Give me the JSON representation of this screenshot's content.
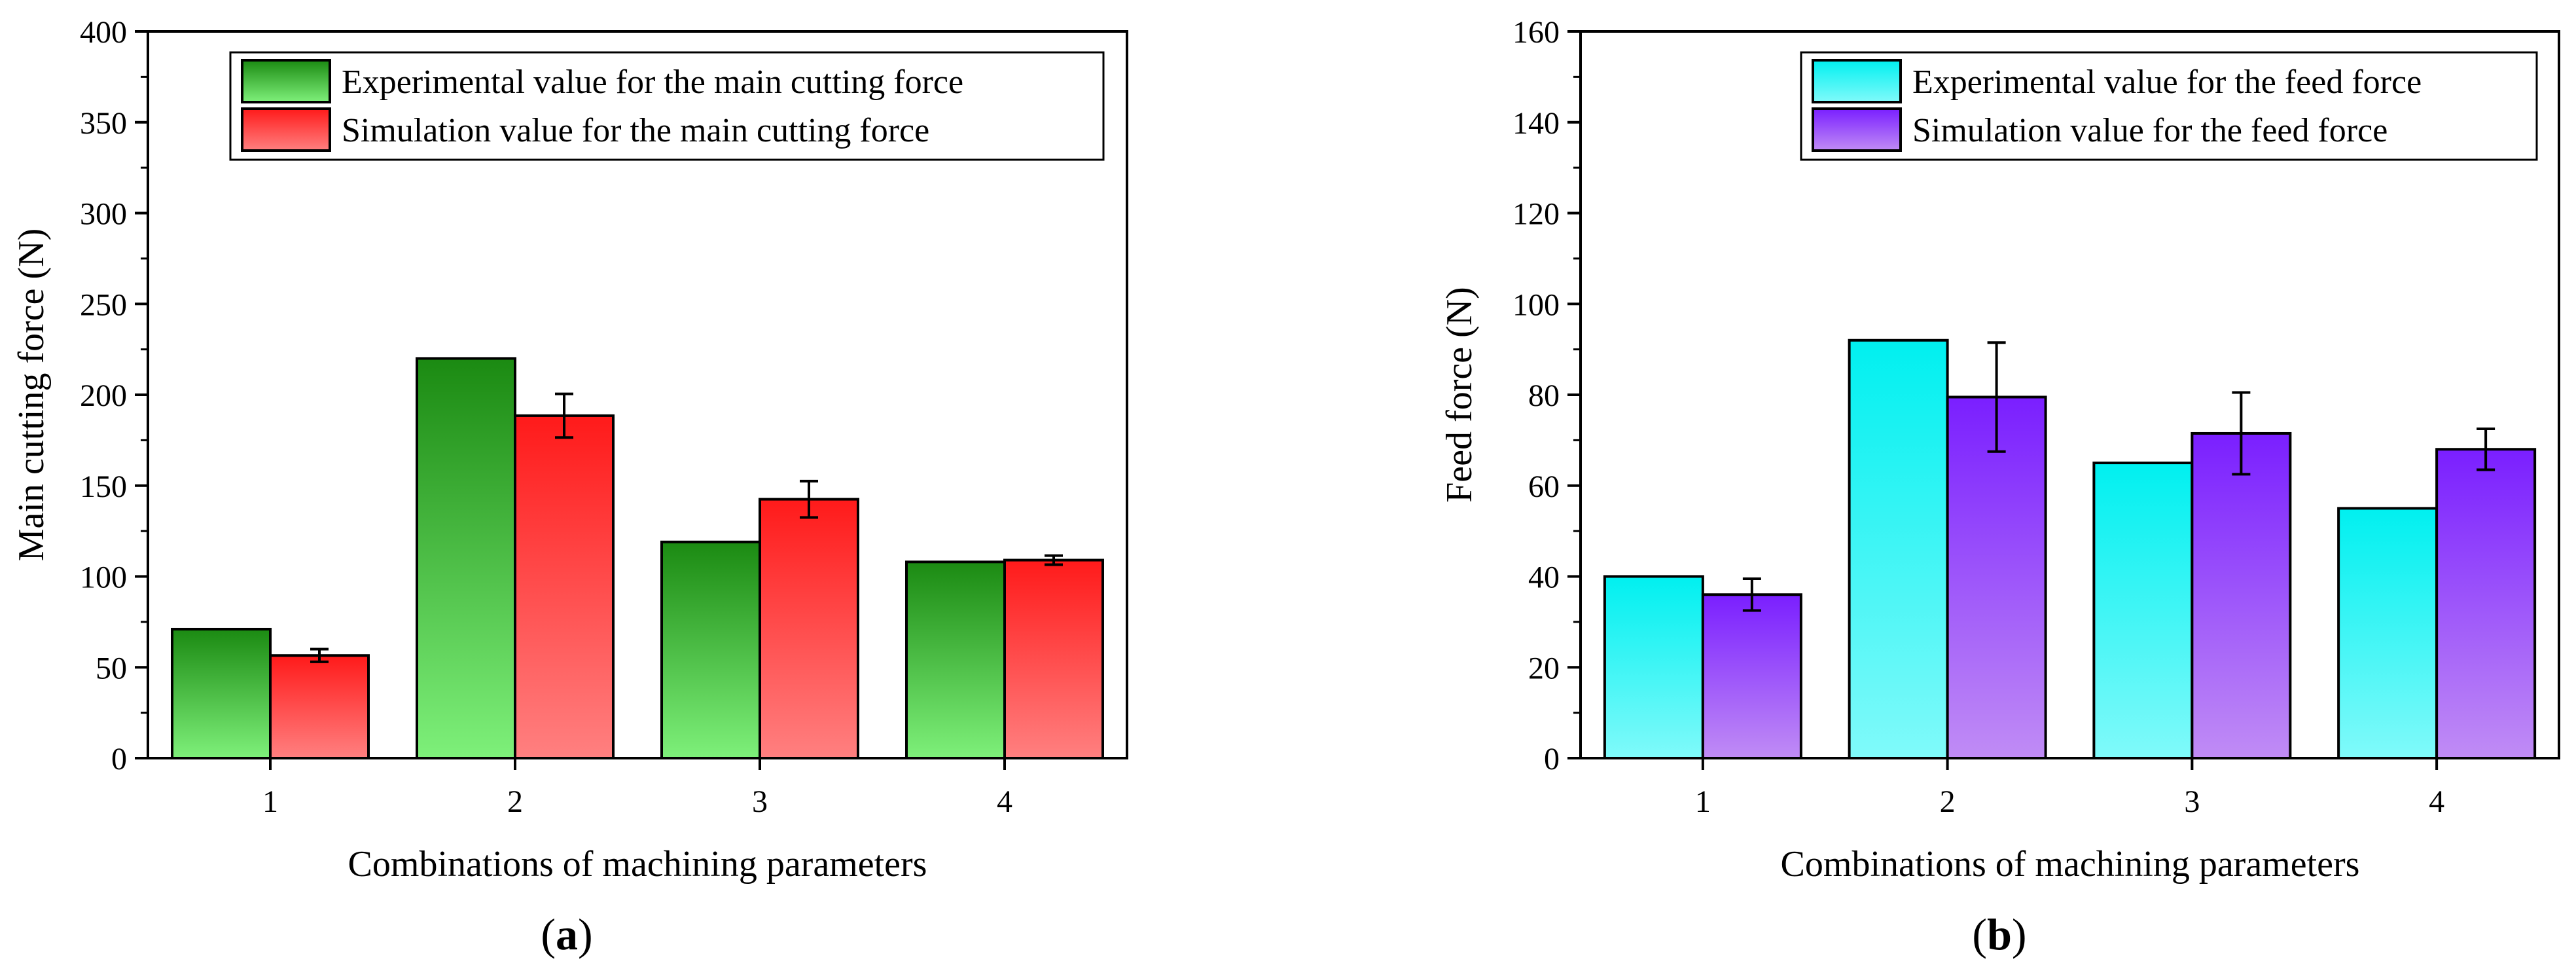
{
  "chart_data": [
    {
      "type": "bar",
      "panel_label": "(a)",
      "panel_letter": "a",
      "xlabel": "Combinations of machining parameters",
      "ylabel": "Main cutting force (N)",
      "categories": [
        "1",
        "2",
        "3",
        "4"
      ],
      "ylim": [
        0,
        400
      ],
      "yticks": [
        0,
        50,
        100,
        150,
        200,
        250,
        300,
        350,
        400
      ],
      "legend_position": "top-right",
      "series": [
        {
          "name": "Experimental value for the main cutting force",
          "values": [
            71,
            220,
            119,
            108
          ],
          "errors": null,
          "color_top": "#1b8a12",
          "color_bottom": "#7ef07a"
        },
        {
          "name": "Simulation value for the main cutting force",
          "values": [
            56.5,
            188.5,
            142.5,
            109
          ],
          "errors": [
            3.5,
            12,
            10,
            2.5
          ],
          "color_top": "#ff1a1a",
          "color_bottom": "#ff8080"
        }
      ]
    },
    {
      "type": "bar",
      "panel_label": "(b)",
      "panel_letter": "b",
      "xlabel": "Combinations of machining parameters",
      "ylabel": "Feed force (N)",
      "categories": [
        "1",
        "2",
        "3",
        "4"
      ],
      "ylim": [
        0,
        160
      ],
      "yticks": [
        0,
        20,
        40,
        60,
        80,
        100,
        120,
        140,
        160
      ],
      "legend_position": "top-right",
      "series": [
        {
          "name": "Experimental value for the feed force",
          "values": [
            40,
            92,
            65,
            55
          ],
          "errors": null,
          "color_top": "#00f0f0",
          "color_bottom": "#80fafa"
        },
        {
          "name": "Simulation value for the feed force",
          "values": [
            36,
            79.5,
            71.5,
            68
          ],
          "errors": [
            3.5,
            12,
            9,
            4.5
          ],
          "color_top": "#7a1fff",
          "color_bottom": "#c08cf5"
        }
      ]
    }
  ]
}
